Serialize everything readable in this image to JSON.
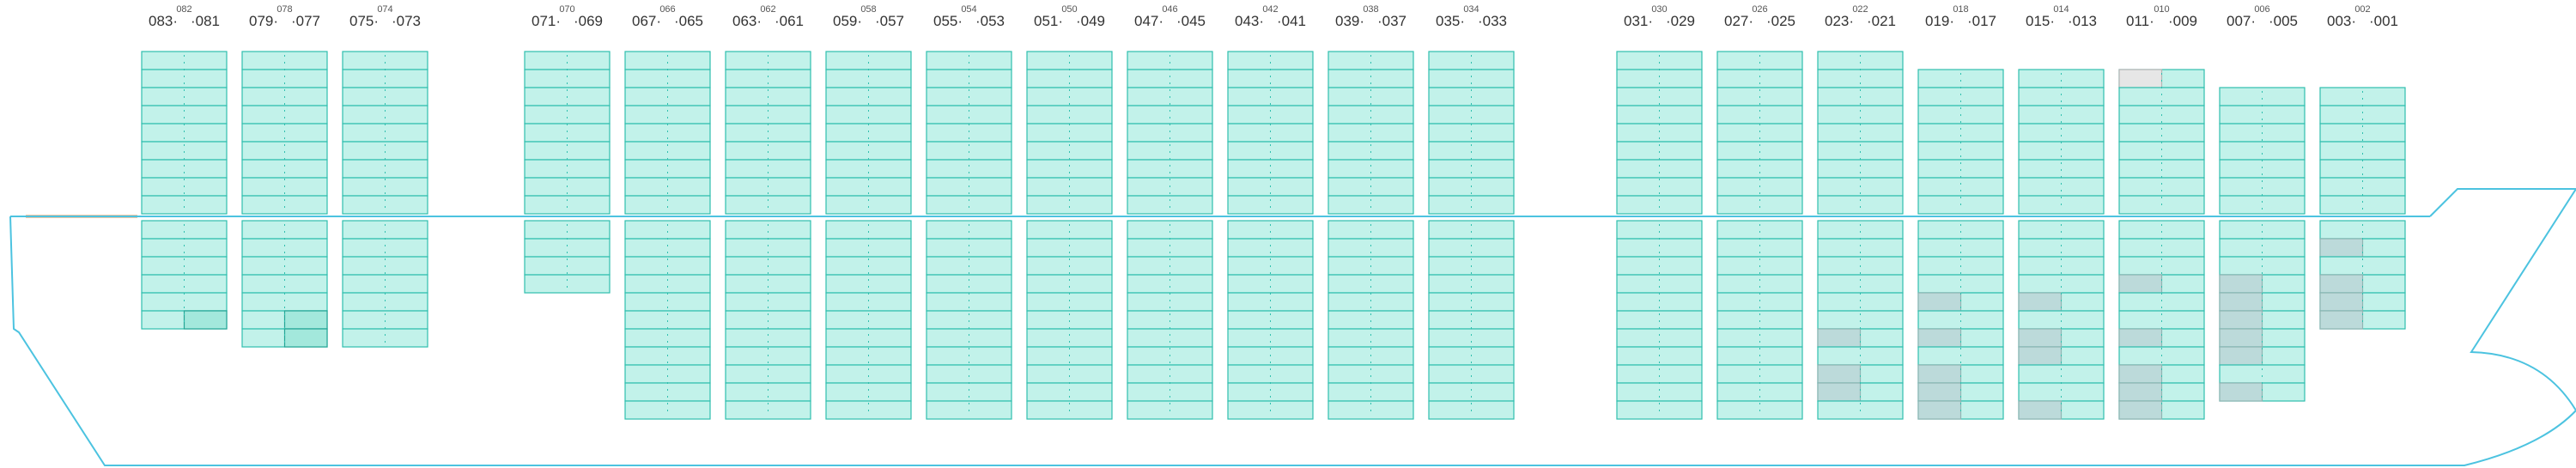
{
  "colors": {
    "cell_fill": "#c2f2ea",
    "cell_stroke": "#2fbfae",
    "cell_highlight": "#a3e8dc",
    "cell_highlight_stroke": "#25a595",
    "cell_grey": "#bcdada",
    "cell_grey_stroke": "#8fb5b3",
    "cell_empty": "#e6e6e6",
    "cell_empty_stroke": "#b5b5b5",
    "hull": "#4cc3e0",
    "deck_orange": "#d88a4a"
  },
  "bays": [
    {
      "top": "082",
      "left": "083",
      "right": "081",
      "deck": 9,
      "hold": 6,
      "marks": [
        {
          "sect": "hold",
          "rows": [
            5
          ],
          "side": "right",
          "kind": "highlight"
        }
      ]
    },
    {
      "top": "078",
      "left": "079",
      "right": "077",
      "deck": 9,
      "hold": 7,
      "marks": [
        {
          "sect": "hold",
          "rows": [
            5,
            6
          ],
          "side": "right",
          "kind": "highlight"
        }
      ]
    },
    {
      "top": "074",
      "left": "075",
      "right": "073",
      "deck": 9,
      "hold": 7,
      "marks": []
    },
    {
      "top": "070",
      "left": "071",
      "right": "069",
      "deck": 9,
      "hold": 4,
      "marks": []
    },
    {
      "top": "066",
      "left": "067",
      "right": "065",
      "deck": 9,
      "hold": 11,
      "marks": []
    },
    {
      "top": "062",
      "left": "063",
      "right": "061",
      "deck": 9,
      "hold": 11,
      "marks": []
    },
    {
      "top": "058",
      "left": "059",
      "right": "057",
      "deck": 9,
      "hold": 11,
      "marks": []
    },
    {
      "top": "054",
      "left": "055",
      "right": "053",
      "deck": 9,
      "hold": 11,
      "marks": []
    },
    {
      "top": "050",
      "left": "051",
      "right": "049",
      "deck": 9,
      "hold": 11,
      "marks": []
    },
    {
      "top": "046",
      "left": "047",
      "right": "045",
      "deck": 9,
      "hold": 11,
      "marks": []
    },
    {
      "top": "042",
      "left": "043",
      "right": "041",
      "deck": 9,
      "hold": 11,
      "marks": []
    },
    {
      "top": "038",
      "left": "039",
      "right": "037",
      "deck": 9,
      "hold": 11,
      "marks": []
    },
    {
      "top": "034",
      "left": "035",
      "right": "033",
      "deck": 9,
      "hold": 11,
      "marks": []
    },
    {
      "top": "030",
      "left": "031",
      "right": "029",
      "deck": 9,
      "hold": 11,
      "marks": []
    },
    {
      "top": "026",
      "left": "027",
      "right": "025",
      "deck": 9,
      "hold": 11,
      "marks": []
    },
    {
      "top": "022",
      "left": "023",
      "right": "021",
      "deck": 9,
      "hold": 11,
      "marks": [
        {
          "sect": "hold",
          "rows": [
            6,
            8,
            9
          ],
          "side": "left",
          "kind": "grey"
        }
      ]
    },
    {
      "top": "018",
      "left": "019",
      "right": "017",
      "deck": 8,
      "hold": 11,
      "marks": [
        {
          "sect": "hold",
          "rows": [
            4,
            6,
            8,
            9,
            10
          ],
          "side": "left",
          "kind": "grey"
        }
      ]
    },
    {
      "top": "014",
      "left": "015",
      "right": "013",
      "deck": 8,
      "hold": 11,
      "marks": [
        {
          "sect": "hold",
          "rows": [
            4,
            6,
            7,
            10
          ],
          "side": "left",
          "kind": "grey"
        }
      ]
    },
    {
      "top": "010",
      "left": "011",
      "right": "009",
      "deck": 8,
      "hold": 11,
      "marks": [
        {
          "sect": "deck",
          "rows": [
            0
          ],
          "side": "left",
          "kind": "empty"
        },
        {
          "sect": "hold",
          "rows": [
            3,
            6,
            8,
            9,
            10
          ],
          "side": "left",
          "kind": "grey"
        }
      ]
    },
    {
      "top": "006",
      "left": "007",
      "right": "005",
      "deck": 7,
      "hold": 10,
      "marks": [
        {
          "sect": "hold",
          "rows": [
            3,
            4,
            5,
            6,
            7,
            9
          ],
          "side": "left",
          "kind": "grey"
        }
      ]
    },
    {
      "top": "002",
      "left": "003",
      "right": "001",
      "deck": 7,
      "hold": 6,
      "marks": [
        {
          "sect": "hold",
          "rows": [
            1,
            3,
            4,
            5
          ],
          "side": "left",
          "kind": "grey"
        }
      ]
    }
  ]
}
